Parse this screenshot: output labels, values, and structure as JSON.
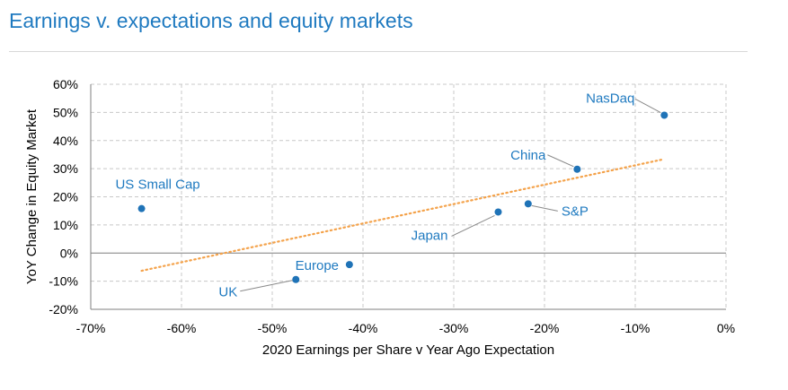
{
  "header": {
    "title": "Earnings v. expectations and equity markets"
  },
  "colors": {
    "title": "#1f7ac0",
    "points": "#1f73b7",
    "labels": "#1f7ac0",
    "trendline": "#f4a24a",
    "grid": "#c8c8c8"
  },
  "chart_data": {
    "type": "scatter",
    "title": "",
    "xlabel": "2020 Earnings per Share  v Year Ago Expectation",
    "ylabel": "YoY Change in Equity Market",
    "xlim": [
      -70,
      0
    ],
    "ylim": [
      -20,
      60
    ],
    "x_ticks": [
      -70,
      -60,
      -50,
      -40,
      -30,
      -20,
      -10,
      0
    ],
    "x_tick_labels": [
      "-70%",
      "-60%",
      "-50%",
      "-40%",
      "-30%",
      "-20%",
      "-10%",
      "0%"
    ],
    "y_ticks": [
      60,
      50,
      40,
      30,
      20,
      10,
      0,
      -10,
      -20
    ],
    "y_tick_labels": [
      "60%",
      "50%",
      "40%",
      "30%",
      "20%",
      "10%",
      "0%",
      "-10%",
      "-20%"
    ],
    "grid": true,
    "points": [
      {
        "label": "NasDaq",
        "x": -6.8,
        "y": 49
      },
      {
        "label": "China",
        "x": -16.4,
        "y": 29.8
      },
      {
        "label": "S&P",
        "x": -21.8,
        "y": 17.5
      },
      {
        "label": "Japan",
        "x": -25.1,
        "y": 14.6
      },
      {
        "label": "US Small Cap",
        "x": -64.4,
        "y": 15.8
      },
      {
        "label": "Europe",
        "x": -41.5,
        "y": -4.1
      },
      {
        "label": "UK",
        "x": -47.4,
        "y": -9.4
      }
    ],
    "trendline": {
      "style": "dotted",
      "x": [
        -64.4,
        -6.8
      ],
      "y": [
        -6.3,
        33.4
      ]
    }
  }
}
